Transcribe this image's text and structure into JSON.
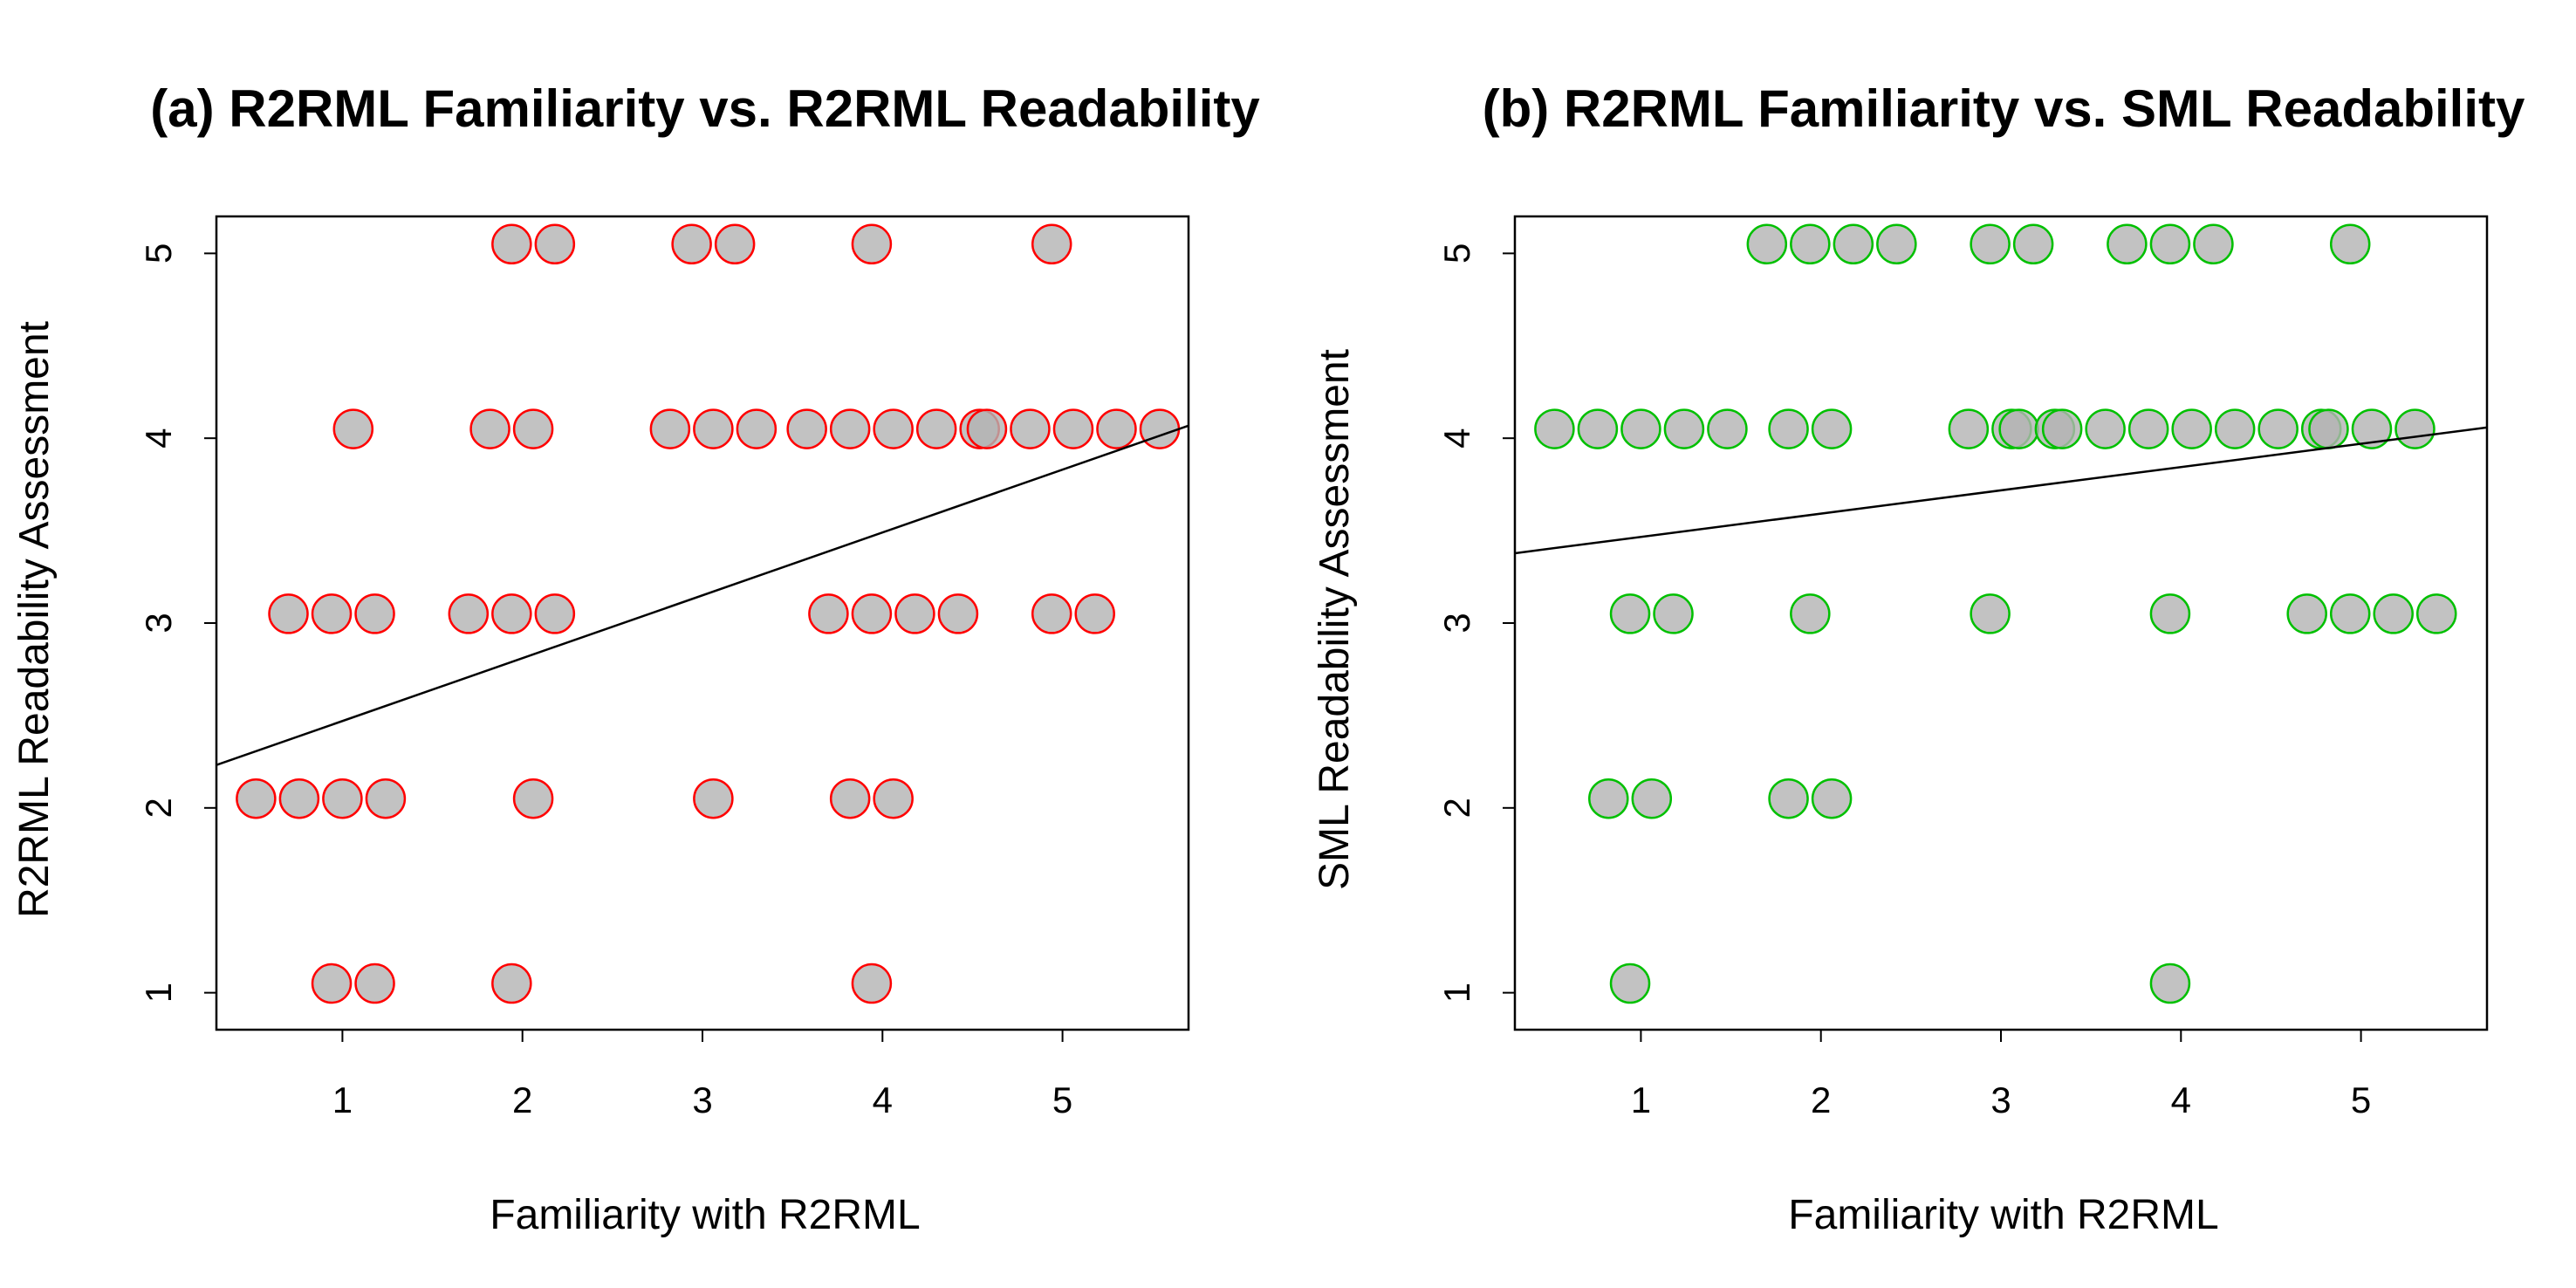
{
  "chart_data": [
    {
      "type": "scatter",
      "title": "(a) R2RML Familiarity vs. R2RML Readability",
      "xlabel": "Familiarity with R2RML",
      "ylabel": "R2RML Readability Assessment",
      "xlim": [
        0.3,
        5.7
      ],
      "ylim": [
        0.8,
        5.2
      ],
      "xticks": [
        "1",
        "2",
        "3",
        "4",
        "5"
      ],
      "yticks": [
        "1",
        "2",
        "3",
        "4",
        "5"
      ],
      "colors": {
        "stroke": "#ff0000",
        "fill": "#b3b3b3",
        "line": "#000000"
      },
      "regression": {
        "intercept": 2.13,
        "slope": 0.34
      },
      "points": [
        {
          "x": 0.94,
          "y": 1.05
        },
        {
          "x": 1.18,
          "y": 1.05
        },
        {
          "x": 1.94,
          "y": 1.05
        },
        {
          "x": 3.94,
          "y": 1.05
        },
        {
          "x": 0.52,
          "y": 2.05
        },
        {
          "x": 0.76,
          "y": 2.05
        },
        {
          "x": 1.0,
          "y": 2.05
        },
        {
          "x": 1.24,
          "y": 2.05
        },
        {
          "x": 2.06,
          "y": 2.05
        },
        {
          "x": 3.06,
          "y": 2.05
        },
        {
          "x": 3.82,
          "y": 2.05
        },
        {
          "x": 4.06,
          "y": 2.05
        },
        {
          "x": 0.7,
          "y": 3.05
        },
        {
          "x": 0.94,
          "y": 3.05
        },
        {
          "x": 1.18,
          "y": 3.05
        },
        {
          "x": 1.7,
          "y": 3.05
        },
        {
          "x": 1.94,
          "y": 3.05
        },
        {
          "x": 2.18,
          "y": 3.05
        },
        {
          "x": 3.7,
          "y": 3.05
        },
        {
          "x": 3.94,
          "y": 3.05
        },
        {
          "x": 4.18,
          "y": 3.05
        },
        {
          "x": 4.42,
          "y": 3.05
        },
        {
          "x": 4.94,
          "y": 3.05
        },
        {
          "x": 5.18,
          "y": 3.05
        },
        {
          "x": 1.06,
          "y": 4.05
        },
        {
          "x": 1.82,
          "y": 4.05
        },
        {
          "x": 2.06,
          "y": 4.05
        },
        {
          "x": 2.82,
          "y": 4.05
        },
        {
          "x": 3.06,
          "y": 4.05
        },
        {
          "x": 3.3,
          "y": 4.05
        },
        {
          "x": 3.58,
          "y": 4.05
        },
        {
          "x": 3.82,
          "y": 4.05
        },
        {
          "x": 4.06,
          "y": 4.05
        },
        {
          "x": 4.3,
          "y": 4.05
        },
        {
          "x": 4.54,
          "y": 4.05
        },
        {
          "x": 4.58,
          "y": 4.05
        },
        {
          "x": 4.82,
          "y": 4.05
        },
        {
          "x": 5.06,
          "y": 4.05
        },
        {
          "x": 5.3,
          "y": 4.05
        },
        {
          "x": 5.54,
          "y": 4.05
        },
        {
          "x": 1.94,
          "y": 5.05
        },
        {
          "x": 2.18,
          "y": 5.05
        },
        {
          "x": 2.94,
          "y": 5.05
        },
        {
          "x": 3.18,
          "y": 5.05
        },
        {
          "x": 3.94,
          "y": 5.05
        },
        {
          "x": 4.94,
          "y": 5.05
        }
      ]
    },
    {
      "type": "scatter",
      "title": "(b) R2RML Familiarity vs. SML Readability",
      "xlabel": "Familiarity with R2RML",
      "ylabel": "SML Readability Assessment",
      "xlim": [
        0.3,
        5.7
      ],
      "ylim": [
        0.8,
        5.2
      ],
      "xticks": [
        "1",
        "2",
        "3",
        "4",
        "5"
      ],
      "yticks": [
        "1",
        "2",
        "3",
        "4",
        "5"
      ],
      "colors": {
        "stroke": "#00c000",
        "fill": "#b3b3b3",
        "line": "#000000"
      },
      "regression": {
        "intercept": 3.34,
        "slope": 0.126
      },
      "points": [
        {
          "x": 0.94,
          "y": 1.05
        },
        {
          "x": 3.94,
          "y": 1.05
        },
        {
          "x": 0.82,
          "y": 2.05
        },
        {
          "x": 1.06,
          "y": 2.05
        },
        {
          "x": 1.82,
          "y": 2.05
        },
        {
          "x": 2.06,
          "y": 2.05
        },
        {
          "x": 0.94,
          "y": 3.05
        },
        {
          "x": 1.18,
          "y": 3.05
        },
        {
          "x": 1.94,
          "y": 3.05
        },
        {
          "x": 2.94,
          "y": 3.05
        },
        {
          "x": 3.94,
          "y": 3.05
        },
        {
          "x": 4.7,
          "y": 3.05
        },
        {
          "x": 4.94,
          "y": 3.05
        },
        {
          "x": 5.18,
          "y": 3.05
        },
        {
          "x": 5.42,
          "y": 3.05
        },
        {
          "x": 0.52,
          "y": 4.05
        },
        {
          "x": 0.76,
          "y": 4.05
        },
        {
          "x": 1.0,
          "y": 4.05
        },
        {
          "x": 1.24,
          "y": 4.05
        },
        {
          "x": 1.48,
          "y": 4.05
        },
        {
          "x": 1.82,
          "y": 4.05
        },
        {
          "x": 2.06,
          "y": 4.05
        },
        {
          "x": 2.82,
          "y": 4.05
        },
        {
          "x": 3.06,
          "y": 4.05
        },
        {
          "x": 3.1,
          "y": 4.05
        },
        {
          "x": 3.3,
          "y": 4.05
        },
        {
          "x": 3.34,
          "y": 4.05
        },
        {
          "x": 3.58,
          "y": 4.05
        },
        {
          "x": 3.82,
          "y": 4.05
        },
        {
          "x": 4.06,
          "y": 4.05
        },
        {
          "x": 4.3,
          "y": 4.05
        },
        {
          "x": 4.54,
          "y": 4.05
        },
        {
          "x": 4.78,
          "y": 4.05
        },
        {
          "x": 4.82,
          "y": 4.05
        },
        {
          "x": 5.06,
          "y": 4.05
        },
        {
          "x": 5.3,
          "y": 4.05
        },
        {
          "x": 1.7,
          "y": 5.05
        },
        {
          "x": 1.94,
          "y": 5.05
        },
        {
          "x": 2.18,
          "y": 5.05
        },
        {
          "x": 2.42,
          "y": 5.05
        },
        {
          "x": 2.94,
          "y": 5.05
        },
        {
          "x": 3.18,
          "y": 5.05
        },
        {
          "x": 3.7,
          "y": 5.05
        },
        {
          "x": 3.94,
          "y": 5.05
        },
        {
          "x": 4.18,
          "y": 5.05
        },
        {
          "x": 4.94,
          "y": 5.05
        }
      ]
    }
  ]
}
